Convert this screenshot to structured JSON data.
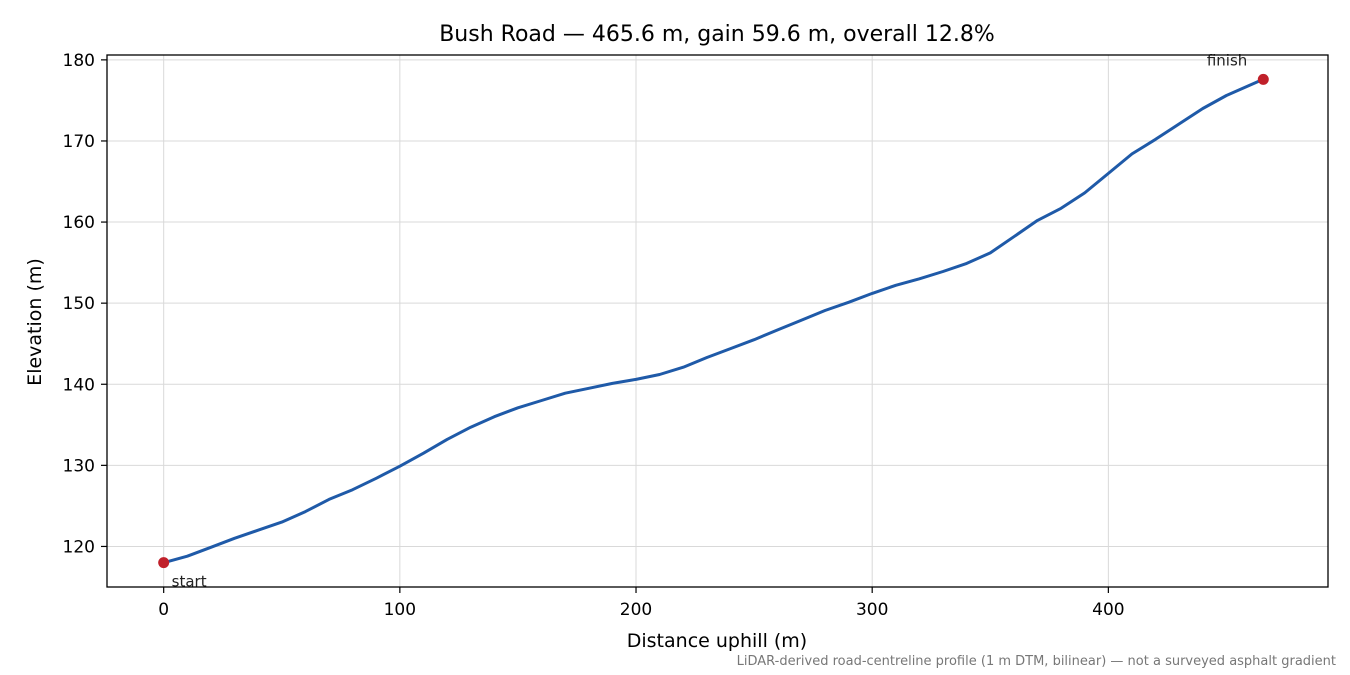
{
  "chart_data": {
    "type": "line",
    "title": "Bush Road — 465.6 m, gain 59.6 m, overall 12.8%",
    "xlabel": "Distance uphill (m)",
    "ylabel": "Elevation (m)",
    "xlim": [
      -24,
      493
    ],
    "ylim": [
      115,
      180.6
    ],
    "xticks": [
      0,
      100,
      200,
      300,
      400
    ],
    "yticks": [
      120,
      130,
      140,
      150,
      160,
      170,
      180
    ],
    "grid": true,
    "line_color": "#1f5aa8",
    "marker_color": "#c0202a",
    "series": [
      {
        "x": [
          0,
          10,
          20,
          30,
          40,
          50,
          60,
          70,
          80,
          90,
          100,
          110,
          120,
          130,
          140,
          150,
          160,
          170,
          180,
          190,
          200,
          210,
          220,
          230,
          240,
          250,
          260,
          270,
          280,
          290,
          300,
          310,
          320,
          330,
          340,
          350,
          360,
          370,
          380,
          390,
          400,
          410,
          420,
          430,
          440,
          450,
          465.6
        ],
        "values": [
          118.0,
          118.8,
          119.9,
          121.0,
          122.0,
          123.0,
          124.3,
          125.8,
          127.0,
          128.4,
          129.9,
          131.5,
          133.2,
          134.7,
          136.0,
          137.1,
          138.0,
          138.9,
          139.5,
          140.1,
          140.6,
          141.2,
          142.1,
          143.3,
          144.4,
          145.5,
          146.7,
          147.9,
          149.1,
          150.1,
          151.2,
          152.2,
          153.0,
          153.9,
          154.9,
          156.2,
          158.2,
          160.2,
          161.7,
          163.6,
          166.0,
          168.4,
          170.2,
          172.1,
          174.0,
          175.6,
          177.6
        ]
      }
    ],
    "annotations": [
      {
        "text": "start",
        "x": 0,
        "y": 118.0
      },
      {
        "text": "finish",
        "x": 465.6,
        "y": 177.6
      }
    ],
    "footnote": "LiDAR-derived road-centreline profile (1 m DTM, bilinear) — not a surveyed asphalt gradient"
  }
}
